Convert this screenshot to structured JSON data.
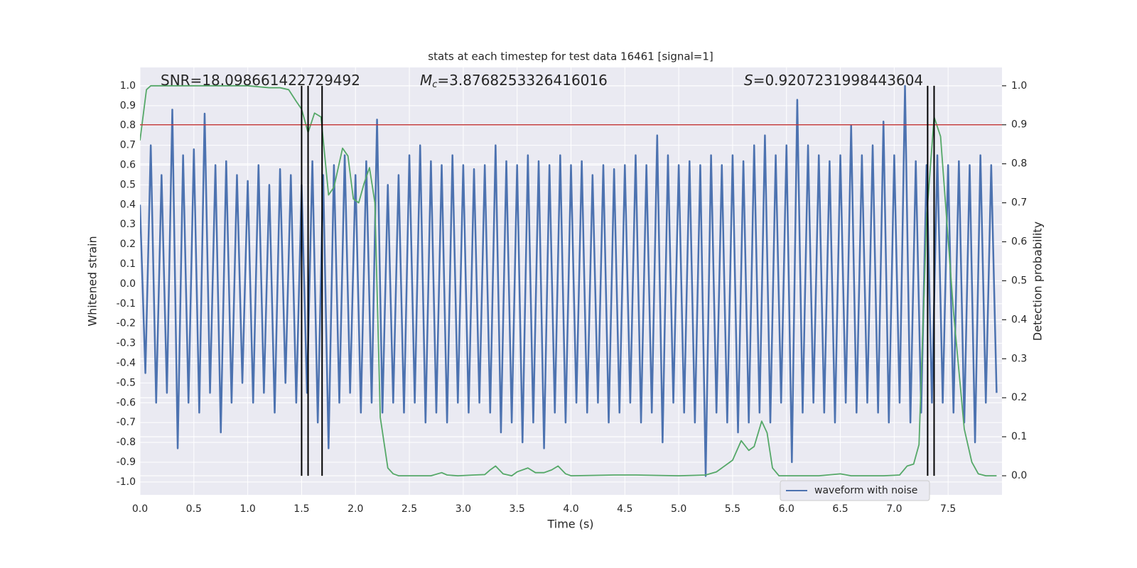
{
  "chart_data": {
    "type": "line",
    "title": "stats at each timestep for test data 16461 [signal=1]",
    "xlabel": "Time (s)",
    "ylabel": "Whitened strain",
    "y2label": "Detection probability",
    "xlim": [
      0,
      8
    ],
    "ylim": [
      -1.065,
      1.093
    ],
    "y2lim": [
      -0.049,
      1.047
    ],
    "grid": true,
    "legend": "lower right",
    "xticks": [
      {
        "value": 0,
        "label": "0.0"
      },
      {
        "value": 0.5,
        "label": "0.5"
      },
      {
        "value": 1,
        "label": "1.0"
      },
      {
        "value": 1.5,
        "label": "1.5"
      },
      {
        "value": 2,
        "label": "2.0"
      },
      {
        "value": 2.5,
        "label": "2.5"
      },
      {
        "value": 3,
        "label": "3.0"
      },
      {
        "value": 3.5,
        "label": "3.5"
      },
      {
        "value": 4,
        "label": "4.0"
      },
      {
        "value": 4.5,
        "label": "4.5"
      },
      {
        "value": 5,
        "label": "5.0"
      },
      {
        "value": 5.5,
        "label": "5.5"
      },
      {
        "value": 6,
        "label": "6.0"
      },
      {
        "value": 6.5,
        "label": "6.5"
      },
      {
        "value": 7,
        "label": "7.0"
      },
      {
        "value": 7.5,
        "label": "7.5"
      }
    ],
    "yticks": [
      {
        "value": -1,
        "label": "-1.0"
      },
      -0.9,
      -0.8,
      -0.7,
      -0.6,
      -0.5,
      -0.4,
      -0.3,
      -0.2,
      -0.1,
      {
        "value": 0,
        "label": "0.0"
      },
      0.1,
      0.2,
      0.3,
      0.4,
      0.5,
      0.6,
      0.7,
      0.8,
      0.9,
      {
        "value": 1,
        "label": "1.0"
      }
    ],
    "y2ticks": [
      {
        "value": 0,
        "label": "0.0"
      },
      0.1,
      0.2,
      0.3,
      0.4,
      0.5,
      0.6,
      0.7,
      0.8,
      0.9,
      {
        "value": 1,
        "label": "1.0"
      }
    ],
    "annotations": [
      {
        "text": "SNR=18.098661422729492"
      },
      {
        "symbol": "M",
        "subscript": "c",
        "text": "=3.8768253326416016"
      },
      {
        "symbol": "S",
        "text": "=0.9207231998443604"
      }
    ],
    "hline": {
      "y": 0.9,
      "axis": "y2",
      "color": "#c03d3e"
    },
    "vlines": {
      "x": [
        1.5,
        1.56,
        1.69,
        7.31,
        7.37
      ],
      "ymin": 0,
      "ymax": 1,
      "axis": "y2",
      "color": "#000000"
    },
    "series": [
      {
        "name": "waveform with noise",
        "color": "#4c72b0",
        "axis": "y",
        "x": [
          0,
          0.05,
          0.1,
          0.15,
          0.2,
          0.25,
          0.3,
          0.35,
          0.4,
          0.45,
          0.5,
          0.55,
          0.6,
          0.65,
          0.7,
          0.75,
          0.8,
          0.85,
          0.9,
          0.95,
          1,
          1.05,
          1.1,
          1.15,
          1.2,
          1.25,
          1.3,
          1.35,
          1.4,
          1.45,
          1.5,
          1.55,
          1.6,
          1.65,
          1.7,
          1.75,
          1.8,
          1.85,
          1.9,
          1.95,
          2,
          2.05,
          2.1,
          2.15,
          2.2,
          2.25,
          2.3,
          2.35,
          2.4,
          2.45,
          2.5,
          2.55,
          2.6,
          2.65,
          2.7,
          2.75,
          2.8,
          2.85,
          2.9,
          2.95,
          3,
          3.05,
          3.1,
          3.15,
          3.2,
          3.25,
          3.3,
          3.35,
          3.4,
          3.45,
          3.5,
          3.55,
          3.6,
          3.65,
          3.7,
          3.75,
          3.8,
          3.85,
          3.9,
          3.95,
          4,
          4.05,
          4.1,
          4.15,
          4.2,
          4.25,
          4.3,
          4.35,
          4.4,
          4.45,
          4.5,
          4.55,
          4.6,
          4.65,
          4.7,
          4.75,
          4.8,
          4.85,
          4.9,
          4.95,
          5,
          5.05,
          5.1,
          5.15,
          5.2,
          5.25,
          5.3,
          5.35,
          5.4,
          5.45,
          5.5,
          5.55,
          5.6,
          5.65,
          5.7,
          5.75,
          5.8,
          5.85,
          5.9,
          5.95,
          6,
          6.05,
          6.1,
          6.15,
          6.2,
          6.25,
          6.3,
          6.35,
          6.4,
          6.45,
          6.5,
          6.55,
          6.6,
          6.65,
          6.7,
          6.75,
          6.8,
          6.85,
          6.9,
          6.95,
          7,
          7.05,
          7.1,
          7.15,
          7.2,
          7.25,
          7.3,
          7.35,
          7.4,
          7.45,
          7.5,
          7.55,
          7.6,
          7.65,
          7.7,
          7.75,
          7.8,
          7.85,
          7.9,
          7.95
        ],
        "values": [
          0.4,
          -0.45,
          0.7,
          -0.6,
          0.55,
          -0.55,
          0.88,
          -0.83,
          0.65,
          -0.6,
          0.68,
          -0.65,
          0.86,
          -0.55,
          0.6,
          -0.75,
          0.62,
          -0.6,
          0.55,
          -0.5,
          0.52,
          -0.6,
          0.6,
          -0.55,
          0.5,
          -0.65,
          0.58,
          -0.5,
          0.55,
          -0.6,
          0.5,
          -0.55,
          0.62,
          -0.7,
          0.55,
          -0.83,
          0.6,
          -0.6,
          0.65,
          -0.55,
          0.55,
          -0.65,
          0.62,
          -0.6,
          0.83,
          -0.65,
          0.5,
          -0.6,
          0.55,
          -0.65,
          0.65,
          -0.6,
          0.7,
          -0.7,
          0.62,
          -0.65,
          0.6,
          -0.7,
          0.65,
          -0.6,
          0.6,
          -0.65,
          0.58,
          -0.6,
          0.6,
          -0.65,
          0.7,
          -0.75,
          0.62,
          -0.7,
          0.6,
          -0.8,
          0.65,
          -0.7,
          0.62,
          -0.83,
          0.6,
          -0.65,
          0.65,
          -0.7,
          0.6,
          -0.6,
          0.62,
          -0.65,
          0.55,
          -0.6,
          0.6,
          -0.7,
          0.58,
          -0.65,
          0.6,
          -0.6,
          0.65,
          -0.7,
          0.6,
          -0.65,
          0.75,
          -0.8,
          0.65,
          -0.6,
          0.6,
          -0.65,
          0.62,
          -0.7,
          0.6,
          -0.97,
          0.65,
          -0.65,
          0.6,
          -0.7,
          0.65,
          -0.75,
          0.62,
          -0.7,
          0.7,
          -0.65,
          0.75,
          -0.7,
          0.65,
          -0.6,
          0.7,
          -0.9,
          0.93,
          -0.65,
          0.7,
          -0.6,
          0.65,
          -0.65,
          0.62,
          -0.7,
          0.65,
          -0.6,
          0.8,
          -0.65,
          0.65,
          -0.6,
          0.7,
          -0.65,
          0.82,
          -0.7,
          0.65,
          -0.6,
          1.0,
          -0.7,
          0.62,
          -0.65,
          0.6,
          -0.6,
          0.65,
          -0.6,
          0.6,
          -0.65,
          0.62,
          -0.7,
          0.6,
          -0.8,
          0.65,
          -0.6,
          0.6,
          -0.55
        ]
      },
      {
        "color": "#55a868",
        "axis": "y2",
        "x": [
          0,
          0.06,
          0.1,
          0.3,
          0.6,
          1.0,
          1.2,
          1.3,
          1.38,
          1.45,
          1.5,
          1.56,
          1.62,
          1.68,
          1.75,
          1.8,
          1.88,
          1.93,
          1.98,
          2.03,
          2.08,
          2.13,
          2.18,
          2.23,
          2.3,
          2.35,
          2.4,
          2.6,
          2.7,
          2.8,
          2.85,
          2.95,
          3.1,
          3.2,
          3.25,
          3.3,
          3.37,
          3.45,
          3.5,
          3.6,
          3.67,
          3.75,
          3.82,
          3.88,
          3.95,
          4.0,
          4.4,
          4.6,
          5.0,
          5.25,
          5.35,
          5.45,
          5.5,
          5.58,
          5.65,
          5.7,
          5.77,
          5.82,
          5.87,
          5.93,
          6.05,
          6.3,
          6.5,
          6.6,
          6.9,
          7.05,
          7.12,
          7.18,
          7.23,
          7.3,
          7.37,
          7.43,
          7.55,
          7.65,
          7.72,
          7.78,
          7.85,
          7.95
        ],
        "values": [
          0.86,
          0.99,
          1.0,
          1.0,
          1.0,
          1.0,
          0.995,
          0.995,
          0.99,
          0.96,
          0.94,
          0.88,
          0.93,
          0.92,
          0.72,
          0.74,
          0.84,
          0.82,
          0.71,
          0.7,
          0.75,
          0.79,
          0.7,
          0.15,
          0.02,
          0.005,
          0.0,
          0.0,
          0.0,
          0.008,
          0.002,
          0.0,
          0.002,
          0.003,
          0.015,
          0.025,
          0.005,
          0.0,
          0.01,
          0.02,
          0.008,
          0.008,
          0.015,
          0.025,
          0.005,
          0.0,
          0.002,
          0.002,
          0.0,
          0.002,
          0.01,
          0.03,
          0.04,
          0.09,
          0.065,
          0.075,
          0.14,
          0.11,
          0.02,
          0.0,
          0.0,
          0.0,
          0.005,
          0.0,
          0.0,
          0.002,
          0.025,
          0.03,
          0.08,
          0.66,
          0.92,
          0.87,
          0.42,
          0.12,
          0.035,
          0.005,
          0.0,
          0.0
        ]
      }
    ]
  }
}
